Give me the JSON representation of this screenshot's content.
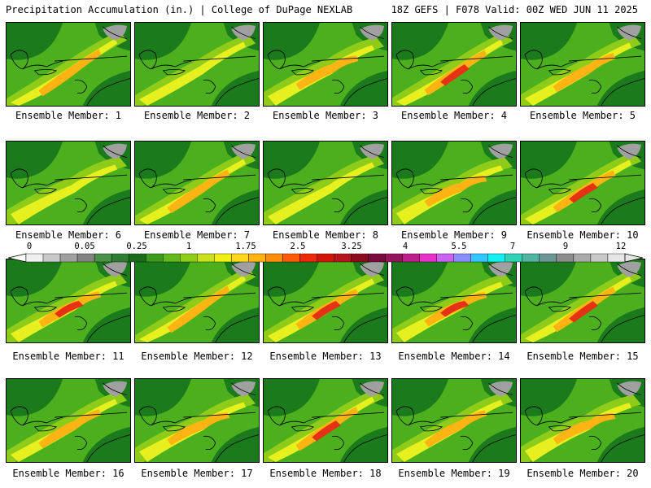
{
  "header": {
    "left_title": "Precipitation Accumulation (in.) | College of DuPage NEXLAB",
    "right_title": "18Z GEFS | F078 Valid: 00Z WED JUN 11 2025"
  },
  "panels": [
    {
      "label": "Ensemble Member: 1"
    },
    {
      "label": "Ensemble Member: 2"
    },
    {
      "label": "Ensemble Member: 3"
    },
    {
      "label": "Ensemble Member: 4"
    },
    {
      "label": "Ensemble Member: 5"
    },
    {
      "label": "Ensemble Member: 6"
    },
    {
      "label": "Ensemble Member: 7"
    },
    {
      "label": "Ensemble Member: 8"
    },
    {
      "label": "Ensemble Member: 9"
    },
    {
      "label": "Ensemble Member: 10"
    },
    {
      "label": "Ensemble Member: 11"
    },
    {
      "label": "Ensemble Member: 12"
    },
    {
      "label": "Ensemble Member: 13"
    },
    {
      "label": "Ensemble Member: 14"
    },
    {
      "label": "Ensemble Member: 15"
    },
    {
      "label": "Ensemble Member: 16"
    },
    {
      "label": "Ensemble Member: 17"
    },
    {
      "label": "Ensemble Member: 18"
    },
    {
      "label": "Ensemble Member: 19"
    },
    {
      "label": "Ensemble Member: 20"
    }
  ],
  "colorbar": {
    "tick_labels": [
      "0",
      "0.05",
      "0.25",
      "1",
      "1.75",
      "2.5",
      "3.25",
      "4",
      "5.5",
      "7",
      "9",
      "12"
    ],
    "colors": [
      "#f0f0f0",
      "#c8c8c8",
      "#a0a0a0",
      "#828282",
      "#4a8f4a",
      "#2e7d32",
      "#1b6b1b",
      "#3c9a1e",
      "#63b81e",
      "#8fcc1a",
      "#c8e01e",
      "#f0f014",
      "#ffd81e",
      "#ffb414",
      "#ff8c0a",
      "#ff5a0a",
      "#f0280a",
      "#d2140a",
      "#b4141e",
      "#8c0a1e",
      "#780a3c",
      "#96145a",
      "#be1e8c",
      "#e632c8",
      "#c864f0",
      "#8c8cff",
      "#32c8ff",
      "#14f0f0",
      "#32d2b4",
      "#50b4a0",
      "#6e9696",
      "#8c8c8c",
      "#aaaaaa",
      "#c8c8c8",
      "#e6e6e6"
    ]
  },
  "map_colors": {
    "dark_green": "#1b7a1b",
    "green": "#4caf1e",
    "light_green": "#8fcc1a",
    "yellow": "#e6f01e",
    "orange": "#ffb414",
    "red": "#e63214",
    "gray": "#a0a0a0"
  }
}
